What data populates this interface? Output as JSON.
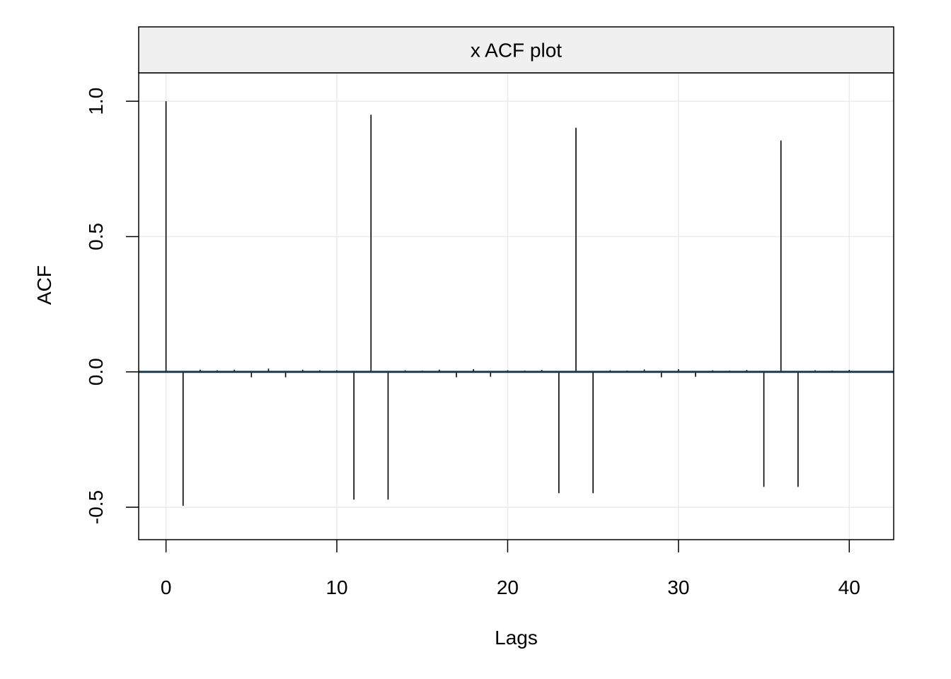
{
  "chart_data": {
    "type": "bar",
    "title": "x ACF plot",
    "xlabel": "Lags",
    "ylabel": "ACF",
    "xlim": [
      -1.6,
      42.6
    ],
    "ylim": [
      -0.62,
      1.105
    ],
    "x_ticks": [
      0,
      10,
      20,
      30,
      40
    ],
    "x_tick_labels": [
      "0",
      "10",
      "20",
      "30",
      "40"
    ],
    "y_ticks": [
      -0.5,
      0.0,
      0.5,
      1.0
    ],
    "y_tick_labels": [
      "-0.5",
      "0.0",
      "0.5",
      "1.0"
    ],
    "grid": true,
    "zero_line_color": "#1f3a4d",
    "bar_color": "#000000",
    "grid_color": "#ebebeb",
    "strip_color": "#f0f0f0",
    "lags": [
      0,
      1,
      2,
      3,
      4,
      5,
      6,
      7,
      8,
      9,
      10,
      11,
      12,
      13,
      14,
      15,
      16,
      17,
      18,
      19,
      20,
      21,
      22,
      23,
      24,
      25,
      26,
      27,
      28,
      29,
      30,
      31,
      32,
      33,
      34,
      35,
      36,
      37,
      38,
      39,
      40
    ],
    "values": [
      1.0,
      -0.495,
      0.008,
      0.006,
      0.008,
      -0.02,
      0.012,
      -0.02,
      0.008,
      0.006,
      0.006,
      -0.472,
      0.95,
      -0.472,
      0.006,
      0.005,
      0.008,
      -0.02,
      0.01,
      -0.018,
      0.006,
      0.005,
      0.007,
      -0.448,
      0.902,
      -0.448,
      0.006,
      0.005,
      0.009,
      -0.02,
      0.01,
      -0.018,
      0.006,
      0.005,
      0.007,
      -0.425,
      0.855,
      -0.425,
      0.006,
      0.005,
      0.007
    ]
  }
}
